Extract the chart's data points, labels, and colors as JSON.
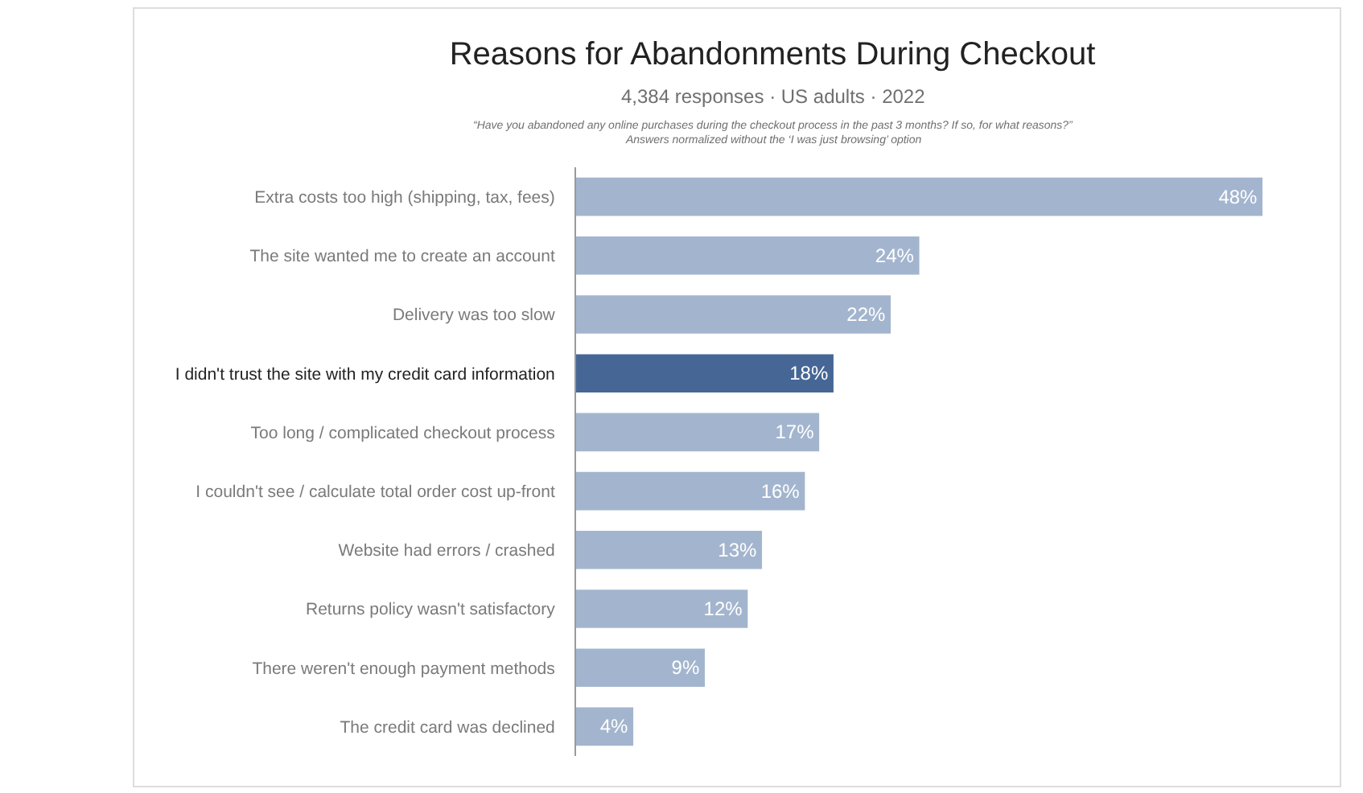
{
  "chart_data": {
    "type": "bar",
    "orientation": "horizontal",
    "title": "Reasons for Abandonments During Checkout",
    "subtitle": "4,384 responses · US adults · 2022",
    "annotations": [
      "“Have you abandoned any online purchases during the checkout process in the past 3 months? If so, for what reasons?”",
      "Answers normalized without the ‘I was just browsing’ option"
    ],
    "categories": [
      "Extra costs too high (shipping, tax, fees)",
      "The site wanted me to create an account",
      "Delivery was too slow",
      "I didn't trust the site with my credit card information",
      "Too long / complicated checkout process",
      "I couldn't see / calculate total order cost up-front",
      "Website had errors / crashed",
      "Returns policy wasn't satisfactory",
      "There weren't enough payment methods",
      "The credit card was declined"
    ],
    "values": [
      48,
      24,
      22,
      18,
      17,
      16,
      13,
      12,
      9,
      4
    ],
    "colors": [
      "#a3b5ce",
      "#a3b5ce",
      "#a3b5ce",
      "#466796",
      "#a3b5ce",
      "#a3b5ce",
      "#a3b5ce",
      "#a3b5ce",
      "#a3b5ce",
      "#a3b5ce"
    ],
    "value_labels": [
      "48%",
      "24%",
      "22%",
      "18%",
      "17%",
      "16%",
      "13%",
      "12%",
      "9%",
      "4%"
    ],
    "tick_labels": "y"
  }
}
